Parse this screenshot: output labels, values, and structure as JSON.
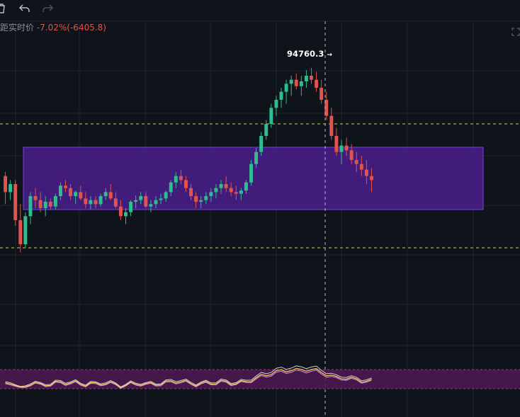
{
  "toolbar": {
    "delete_icon": "trash-icon",
    "undo_icon": "undo-icon",
    "redo_icon": "redo-icon"
  },
  "price_distance": {
    "label": "距实时价",
    "change": "-7.02%(-6405.8)"
  },
  "peak": {
    "price_text": "94760.3",
    "arrow": "→"
  },
  "colors": {
    "background": "#0f131a",
    "grid": "#1e232d",
    "up_candle": "#2dbd8f",
    "down_candle": "#e0534f",
    "range_box_fill": "#4a1e8c",
    "range_box_stroke": "#7b3fe4",
    "dashed_line_upper": "#cbd64a",
    "dashed_line_lower": "#cbd64a",
    "crosshair": "#b0b4bc",
    "oscillator_band": "#4d1a52",
    "oscillator_fast": "#f2d34b",
    "oscillator_slow": "#e38be0",
    "oscillator_base": "#c9ccd3"
  },
  "chart_data": {
    "type": "candlestick",
    "title": "",
    "peak_high_label": 94760.3,
    "range_box": {
      "from_bar": 0,
      "to_bar": 96,
      "label": ""
    },
    "series": [
      {
        "name": "",
        "ohlc": [
          [
            180,
            185,
            145,
            160
          ],
          [
            160,
            175,
            150,
            170
          ],
          [
            170,
            175,
            118,
            125
          ],
          [
            125,
            145,
            85,
            95
          ],
          [
            95,
            135,
            90,
            130
          ],
          [
            130,
            160,
            120,
            155
          ],
          [
            155,
            165,
            140,
            150
          ],
          [
            150,
            160,
            135,
            140
          ],
          [
            140,
            155,
            130,
            148
          ],
          [
            148,
            152,
            138,
            142
          ],
          [
            142,
            158,
            138,
            155
          ],
          [
            155,
            172,
            150,
            168
          ],
          [
            168,
            175,
            160,
            165
          ],
          [
            165,
            170,
            150,
            155
          ],
          [
            155,
            162,
            145,
            160
          ],
          [
            160,
            168,
            150,
            152
          ],
          [
            152,
            160,
            140,
            145
          ],
          [
            145,
            155,
            138,
            150
          ],
          [
            150,
            155,
            140,
            145
          ],
          [
            145,
            158,
            142,
            155
          ],
          [
            155,
            165,
            150,
            160
          ],
          [
            160,
            170,
            150,
            152
          ],
          [
            152,
            160,
            140,
            142
          ],
          [
            142,
            150,
            125,
            130
          ],
          [
            130,
            140,
            120,
            135
          ],
          [
            135,
            150,
            130,
            148
          ],
          [
            148,
            156,
            140,
            150
          ],
          [
            150,
            160,
            145,
            155
          ],
          [
            155,
            160,
            140,
            142
          ],
          [
            142,
            150,
            135,
            145
          ],
          [
            145,
            155,
            140,
            150
          ],
          [
            150,
            158,
            145,
            152
          ],
          [
            152,
            162,
            148,
            160
          ],
          [
            160,
            175,
            155,
            172
          ],
          [
            172,
            185,
            165,
            180
          ],
          [
            180,
            188,
            170,
            175
          ],
          [
            175,
            180,
            160,
            165
          ],
          [
            165,
            170,
            150,
            155
          ],
          [
            155,
            160,
            140,
            148
          ],
          [
            148,
            155,
            140,
            150
          ],
          [
            150,
            160,
            145,
            155
          ],
          [
            155,
            165,
            148,
            160
          ],
          [
            160,
            170,
            152,
            165
          ],
          [
            165,
            175,
            158,
            170
          ],
          [
            170,
            180,
            160,
            165
          ],
          [
            165,
            172,
            155,
            160
          ],
          [
            160,
            168,
            150,
            158
          ],
          [
            158,
            165,
            150,
            162
          ],
          [
            162,
            175,
            158,
            172
          ],
          [
            172,
            200,
            168,
            195
          ],
          [
            195,
            215,
            190,
            210
          ],
          [
            210,
            235,
            205,
            230
          ],
          [
            230,
            250,
            225,
            245
          ],
          [
            245,
            270,
            240,
            265
          ],
          [
            265,
            280,
            255,
            275
          ],
          [
            275,
            290,
            265,
            285
          ],
          [
            285,
            300,
            270,
            295
          ],
          [
            295,
            305,
            280,
            300
          ],
          [
            300,
            308,
            288,
            292
          ],
          [
            292,
            305,
            280,
            298
          ],
          [
            298,
            312,
            290,
            305
          ],
          [
            305,
            315,
            295,
            300
          ],
          [
            300,
            310,
            285,
            290
          ],
          [
            290,
            300,
            270,
            275
          ],
          [
            275,
            285,
            250,
            255
          ],
          [
            255,
            265,
            225,
            230
          ],
          [
            230,
            240,
            205,
            210
          ],
          [
            210,
            225,
            195,
            218
          ],
          [
            218,
            228,
            205,
            212
          ],
          [
            212,
            220,
            195,
            200
          ],
          [
            200,
            210,
            185,
            195
          ],
          [
            195,
            205,
            180,
            188
          ],
          [
            188,
            200,
            170,
            180
          ],
          [
            180,
            190,
            160,
            175
          ]
        ]
      }
    ]
  }
}
